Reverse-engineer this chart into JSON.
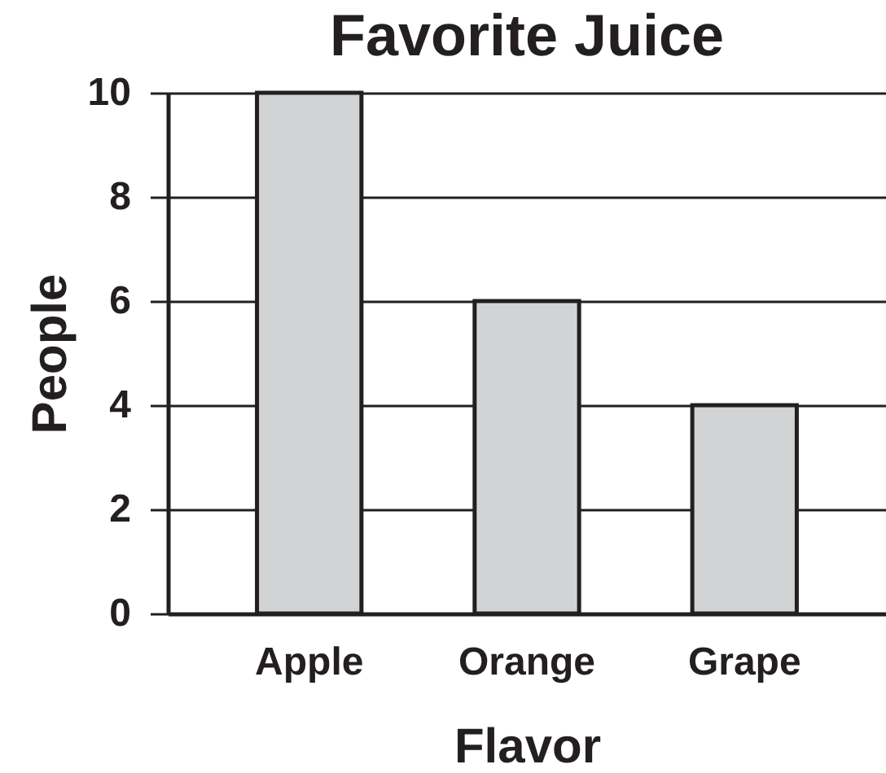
{
  "chart_data": {
    "type": "bar",
    "title": "Favorite Juice",
    "xlabel": "Flavor",
    "ylabel": "People",
    "categories": [
      "Apple",
      "Orange",
      "Grape"
    ],
    "values": [
      10,
      6,
      4
    ],
    "color": "#d1d3d4",
    "ylim": [
      0,
      10
    ],
    "yticks": [
      0,
      2,
      4,
      6,
      8,
      10
    ],
    "grid": "y"
  }
}
